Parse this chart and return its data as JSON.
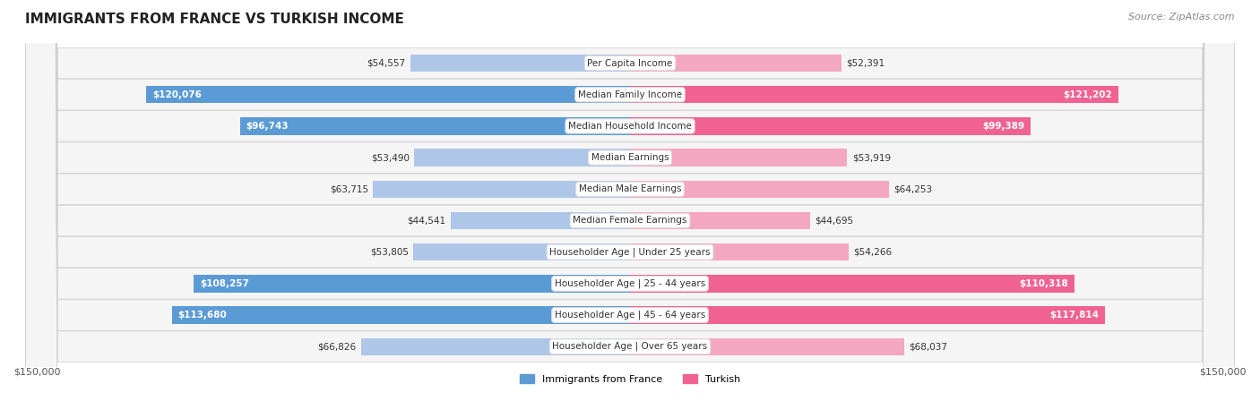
{
  "title": "IMMIGRANTS FROM FRANCE VS TURKISH INCOME",
  "source": "Source: ZipAtlas.com",
  "categories": [
    "Per Capita Income",
    "Median Family Income",
    "Median Household Income",
    "Median Earnings",
    "Median Male Earnings",
    "Median Female Earnings",
    "Householder Age | Under 25 years",
    "Householder Age | 25 - 44 years",
    "Householder Age | 45 - 64 years",
    "Householder Age | Over 65 years"
  ],
  "france_values": [
    54557,
    120076,
    96743,
    53490,
    63715,
    44541,
    53805,
    108257,
    113680,
    66826
  ],
  "turkish_values": [
    52391,
    121202,
    99389,
    53919,
    64253,
    44695,
    54266,
    110318,
    117814,
    68037
  ],
  "france_labels": [
    "$54,557",
    "$120,076",
    "$96,743",
    "$53,490",
    "$63,715",
    "$44,541",
    "$53,805",
    "$108,257",
    "$113,680",
    "$66,826"
  ],
  "turkish_labels": [
    "$52,391",
    "$121,202",
    "$99,389",
    "$53,919",
    "$64,253",
    "$44,695",
    "$54,266",
    "$110,318",
    "$117,814",
    "$68,037"
  ],
  "max_value": 150000,
  "france_bar_color_light": "#aec6e8",
  "france_bar_color_dark": "#5b9bd5",
  "turkish_bar_color_light": "#f4a7c0",
  "turkish_bar_color_dark": "#f06292",
  "france_threshold": 80000,
  "turkish_threshold": 80000,
  "legend_france": "Immigrants from France",
  "legend_turkish": "Turkish",
  "bg_row_color": "#f0f0f0",
  "bg_alt_color": "#ffffff",
  "xlabel_left": "$150,000",
  "xlabel_right": "$150,000"
}
